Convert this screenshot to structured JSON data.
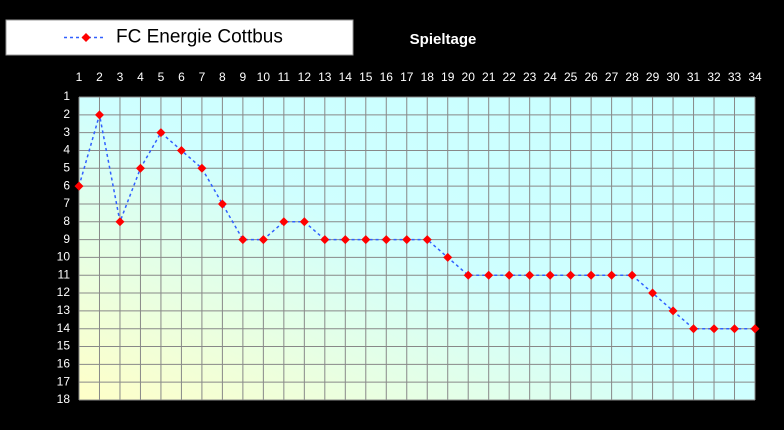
{
  "chart_data": {
    "type": "line",
    "title": "Spieltage",
    "x": [
      1,
      2,
      3,
      4,
      5,
      6,
      7,
      8,
      9,
      10,
      11,
      12,
      13,
      14,
      15,
      16,
      17,
      18,
      19,
      20,
      21,
      22,
      23,
      24,
      25,
      26,
      27,
      28,
      29,
      30,
      31,
      32,
      33,
      34
    ],
    "series": [
      {
        "name": "FC Energie Cottbus",
        "color": "#3060ff",
        "marker_color": "#ff0000",
        "values": [
          6,
          2,
          8,
          5,
          3,
          4,
          5,
          7,
          9,
          9,
          8,
          8,
          9,
          9,
          9,
          9,
          9,
          9,
          10,
          11,
          11,
          11,
          11,
          11,
          11,
          11,
          11,
          11,
          12,
          13,
          14,
          14,
          14,
          14
        ]
      }
    ],
    "xlim": [
      1,
      34
    ],
    "xticks": [
      1,
      2,
      3,
      4,
      5,
      6,
      7,
      8,
      9,
      10,
      11,
      12,
      13,
      14,
      15,
      16,
      17,
      18,
      19,
      20,
      21,
      22,
      23,
      24,
      25,
      26,
      27,
      28,
      29,
      30,
      31,
      32,
      33,
      34
    ],
    "ylim": [
      1,
      18
    ],
    "yticks": [
      1,
      2,
      3,
      4,
      5,
      6,
      7,
      8,
      9,
      10,
      11,
      12,
      13,
      14,
      15,
      16,
      17,
      18
    ],
    "y_inverted": true,
    "grid": true,
    "legend": "top-left"
  }
}
